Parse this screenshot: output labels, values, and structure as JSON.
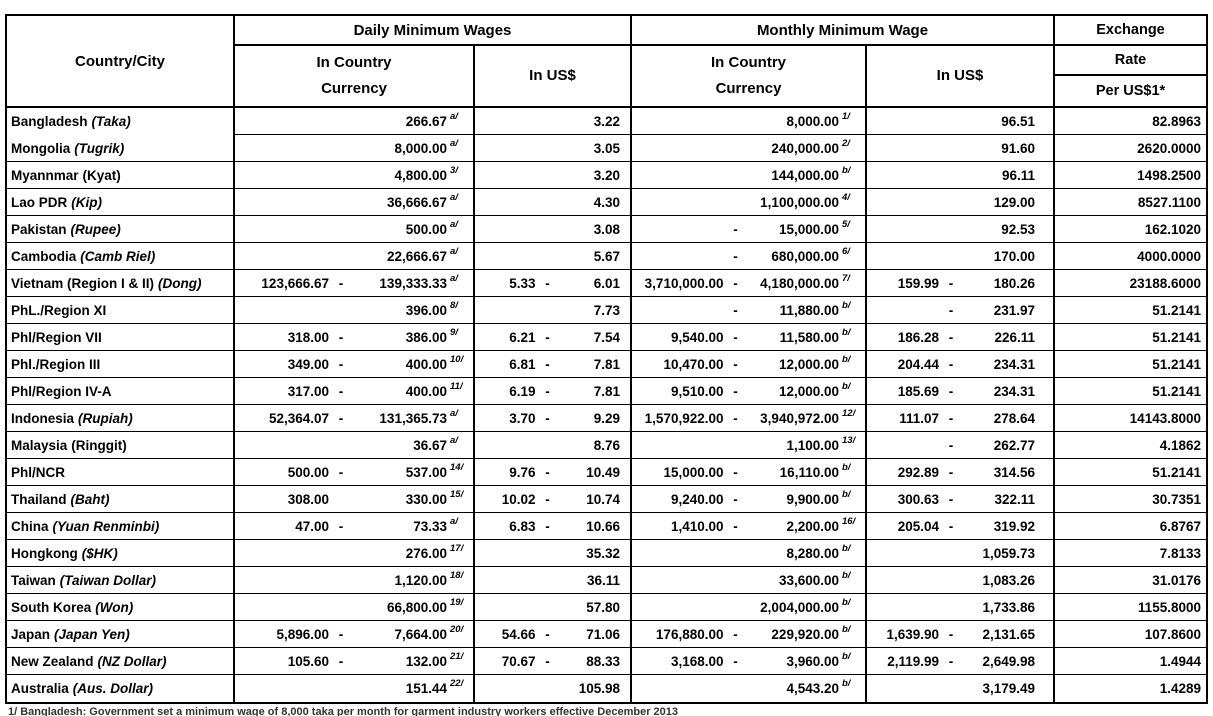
{
  "page": {
    "bg": "#ffffff",
    "text_color": "#000000",
    "border_color": "#000000"
  },
  "header": {
    "country_city": "Country/City",
    "daily_title": "Daily Minimum Wages",
    "monthly_title": "Monthly Minimum Wage",
    "in_country_line1": "In Country",
    "in_country_line2": "Currency",
    "in_usd": "In US$",
    "exchange": "Exchange",
    "rate": "Rate",
    "per_usd": "Per US$1*"
  },
  "footnote": "1/  Bangladesh: Government set a minimum wage of 8,000 taka per month for garment industry workers effective December 2013",
  "table": {
    "columns": [
      "Country/City",
      "Daily Minimum Wages In Country Currency",
      "Daily Minimum Wages In US$",
      "Monthly Minimum Wage In Country Currency",
      "Monthly Minimum Wage In US$",
      "Exchange Rate Per US$1*"
    ],
    "rows": [
      {
        "name": "Bangladesh",
        "curr": "(Taka)",
        "ci": true,
        "nb": true,
        "dc": [
          "",
          "",
          "266.67",
          "a/"
        ],
        "du": [
          "",
          "",
          "3.22"
        ],
        "mc": [
          "",
          "",
          "8,000.00",
          "1/"
        ],
        "mu": [
          "",
          "",
          "96.51"
        ],
        "fx": "82.8963"
      },
      {
        "name": "Mongolia",
        "curr": "(Tugrik)",
        "ci": true,
        "dc": [
          "",
          "",
          "8,000.00",
          "a/"
        ],
        "du": [
          "",
          "",
          "3.05"
        ],
        "mc": [
          "",
          "",
          "240,000.00",
          "2/"
        ],
        "mu": [
          "",
          "",
          "91.60"
        ],
        "fx": "2620.0000"
      },
      {
        "name": "Myannmar",
        "curr": "(Kyat)",
        "ci": false,
        "dc": [
          "",
          "",
          "4,800.00",
          "3/"
        ],
        "du": [
          "",
          "",
          "3.20"
        ],
        "mc": [
          "",
          "",
          "144,000.00",
          "b/"
        ],
        "mu": [
          "",
          "",
          "96.11"
        ],
        "fx": "1498.2500"
      },
      {
        "name": "Lao PDR",
        "curr": "(Kip)",
        "ci": true,
        "dc": [
          "",
          "",
          "36,666.67",
          "a/"
        ],
        "du": [
          "",
          "",
          "4.30"
        ],
        "mc": [
          "",
          "",
          "1,100,000.00",
          "4/"
        ],
        "mu": [
          "",
          "",
          "129.00"
        ],
        "fx": "8527.1100"
      },
      {
        "name": "Pakistan",
        "curr": "(Rupee)",
        "ci": true,
        "dc": [
          "",
          "",
          "500.00",
          "a/"
        ],
        "du": [
          "",
          "",
          "3.08"
        ],
        "mc": [
          "",
          "-",
          "15,000.00",
          "5/"
        ],
        "mu": [
          "",
          "",
          "92.53"
        ],
        "fx": "162.1020"
      },
      {
        "name": "Cambodia",
        "curr": "(Camb Riel)",
        "ci": true,
        "dc": [
          "",
          "",
          "22,666.67",
          "a/"
        ],
        "du": [
          "",
          "",
          "5.67"
        ],
        "mc": [
          "",
          "-",
          "680,000.00",
          "6/"
        ],
        "mu": [
          "",
          "",
          "170.00"
        ],
        "fx": "4000.0000"
      },
      {
        "name": "Vietnam (Region I & II)",
        "curr": "(Dong)",
        "ci": true,
        "dc": [
          "123,666.67",
          "-",
          "139,333.33",
          "a/"
        ],
        "du": [
          "5.33",
          "-",
          "6.01"
        ],
        "mc": [
          "3,710,000.00",
          "-",
          "4,180,000.00",
          "7/"
        ],
        "mu": [
          "159.99",
          "-",
          "180.26"
        ],
        "fx": "23188.6000"
      },
      {
        "name": "PhL./Region XI",
        "curr": "",
        "ci": false,
        "dc": [
          "",
          "",
          "396.00",
          "8/"
        ],
        "du": [
          "",
          "",
          "7.73"
        ],
        "mc": [
          "",
          "-",
          "11,880.00",
          "b/"
        ],
        "mu": [
          "",
          "-",
          "231.97"
        ],
        "fx": "51.2141"
      },
      {
        "name": "Phl/Region VII",
        "curr": "",
        "ci": false,
        "dc": [
          "318.00",
          "-",
          "386.00",
          "9/"
        ],
        "du": [
          "6.21",
          "-",
          "7.54"
        ],
        "mc": [
          "9,540.00",
          "-",
          "11,580.00",
          "b/"
        ],
        "mu": [
          "186.28",
          "-",
          "226.11"
        ],
        "fx": "51.2141"
      },
      {
        "name": "Phl./Region III",
        "curr": "",
        "ci": false,
        "dc": [
          "349.00",
          "-",
          "400.00",
          "10/"
        ],
        "du": [
          "6.81",
          "-",
          "7.81"
        ],
        "mc": [
          "10,470.00",
          "-",
          "12,000.00",
          "b/"
        ],
        "mu": [
          "204.44",
          "-",
          "234.31"
        ],
        "fx": "51.2141"
      },
      {
        "name": "Phl/Region IV-A",
        "curr": "",
        "ci": false,
        "dc": [
          "317.00",
          "-",
          "400.00",
          "11/"
        ],
        "du": [
          "6.19",
          "-",
          "7.81"
        ],
        "mc": [
          "9,510.00",
          "-",
          "12,000.00",
          "b/"
        ],
        "mu": [
          "185.69",
          "-",
          "234.31"
        ],
        "fx": "51.2141"
      },
      {
        "name": "Indonesia",
        "curr": "(Rupiah)",
        "ci": true,
        "dc": [
          "52,364.07",
          "-",
          "131,365.73",
          "a/"
        ],
        "du": [
          "3.70",
          "-",
          "9.29"
        ],
        "mc": [
          "1,570,922.00",
          "-",
          "3,940,972.00",
          "12/"
        ],
        "mu": [
          "111.07",
          "-",
          "278.64"
        ],
        "fx": "14143.8000"
      },
      {
        "name": "Malaysia",
        "curr": "(Ringgit)",
        "ci": false,
        "dc": [
          "",
          "",
          "36.67",
          "a/"
        ],
        "du": [
          "",
          "",
          "8.76"
        ],
        "mc": [
          "",
          "",
          "1,100.00",
          "13/"
        ],
        "mu": [
          "",
          "-",
          "262.77"
        ],
        "fx": "4.1862"
      },
      {
        "name": "Phl/NCR",
        "curr": "",
        "ci": false,
        "dc": [
          "500.00",
          "-",
          "537.00",
          "14/"
        ],
        "du": [
          "9.76",
          "-",
          "10.49"
        ],
        "mc": [
          "15,000.00",
          "-",
          "16,110.00",
          "b/"
        ],
        "mu": [
          "292.89",
          "-",
          "314.56"
        ],
        "fx": "51.2141"
      },
      {
        "name": "Thailand",
        "curr": "(Baht)",
        "ci": true,
        "dc": [
          "308.00",
          "",
          "330.00",
          "15/"
        ],
        "du": [
          "10.02",
          "-",
          "10.74"
        ],
        "mc": [
          "9,240.00",
          "-",
          "9,900.00",
          "b/"
        ],
        "mu": [
          "300.63",
          "-",
          "322.11"
        ],
        "fx": "30.7351"
      },
      {
        "name": "China",
        "curr": "(Yuan Renminbi)",
        "ci": true,
        "dc": [
          "47.00",
          "-",
          "73.33",
          "a/"
        ],
        "du": [
          "6.83",
          "-",
          "10.66"
        ],
        "mc": [
          "1,410.00",
          "-",
          "2,200.00",
          "16/"
        ],
        "mu": [
          "205.04",
          "-",
          "319.92"
        ],
        "fx": "6.8767"
      },
      {
        "name": "Hongkong",
        "curr": "($HK)",
        "ci": true,
        "dc": [
          "",
          "",
          "276.00",
          "17/"
        ],
        "du": [
          "",
          "",
          "35.32"
        ],
        "mc": [
          "",
          "",
          "8,280.00",
          "b/"
        ],
        "mu": [
          "",
          "",
          "1,059.73"
        ],
        "fx": "7.8133"
      },
      {
        "name": "Taiwan",
        "curr": "(Taiwan Dollar)",
        "ci": true,
        "dc": [
          "",
          "",
          "1,120.00",
          "18/"
        ],
        "du": [
          "",
          "",
          "36.11"
        ],
        "mc": [
          "",
          "",
          "33,600.00",
          "b/"
        ],
        "mu": [
          "",
          "",
          "1,083.26"
        ],
        "fx": "31.0176"
      },
      {
        "name": "South Korea",
        "curr": "(Won)",
        "ci": true,
        "dc": [
          "",
          "",
          "66,800.00",
          "19/"
        ],
        "du": [
          "",
          "",
          "57.80"
        ],
        "mc": [
          "",
          "",
          "2,004,000.00",
          "b/"
        ],
        "mu": [
          "",
          "",
          "1,733.86"
        ],
        "fx": "1155.8000"
      },
      {
        "name": "Japan",
        "curr": "(Japan Yen)",
        "ci": true,
        "dc": [
          "5,896.00",
          "-",
          "7,664.00",
          "20/"
        ],
        "du": [
          "54.66",
          "-",
          "71.06"
        ],
        "mc": [
          "176,880.00",
          "-",
          "229,920.00",
          "b/"
        ],
        "mu": [
          "1,639.90",
          "-",
          "2,131.65"
        ],
        "fx": "107.8600"
      },
      {
        "name": "New Zealand",
        "curr": "(NZ Dollar)",
        "ci": true,
        "dc": [
          "105.60",
          "-",
          "132.00",
          "21/"
        ],
        "du": [
          "70.67",
          "-",
          "88.33"
        ],
        "mc": [
          "3,168.00",
          "-",
          "3,960.00",
          "b/"
        ],
        "mu": [
          "2,119.99",
          "-",
          "2,649.98"
        ],
        "fx": "1.4944"
      },
      {
        "name": "Australia",
        "curr": "(Aus. Dollar)",
        "ci": true,
        "dc": [
          "",
          "",
          "151.44",
          "22/"
        ],
        "du": [
          "",
          "",
          "105.98"
        ],
        "mc": [
          "",
          "",
          "4,543.20",
          "b/"
        ],
        "mu": [
          "",
          "",
          "3,179.49"
        ],
        "fx": "1.4289"
      }
    ]
  }
}
